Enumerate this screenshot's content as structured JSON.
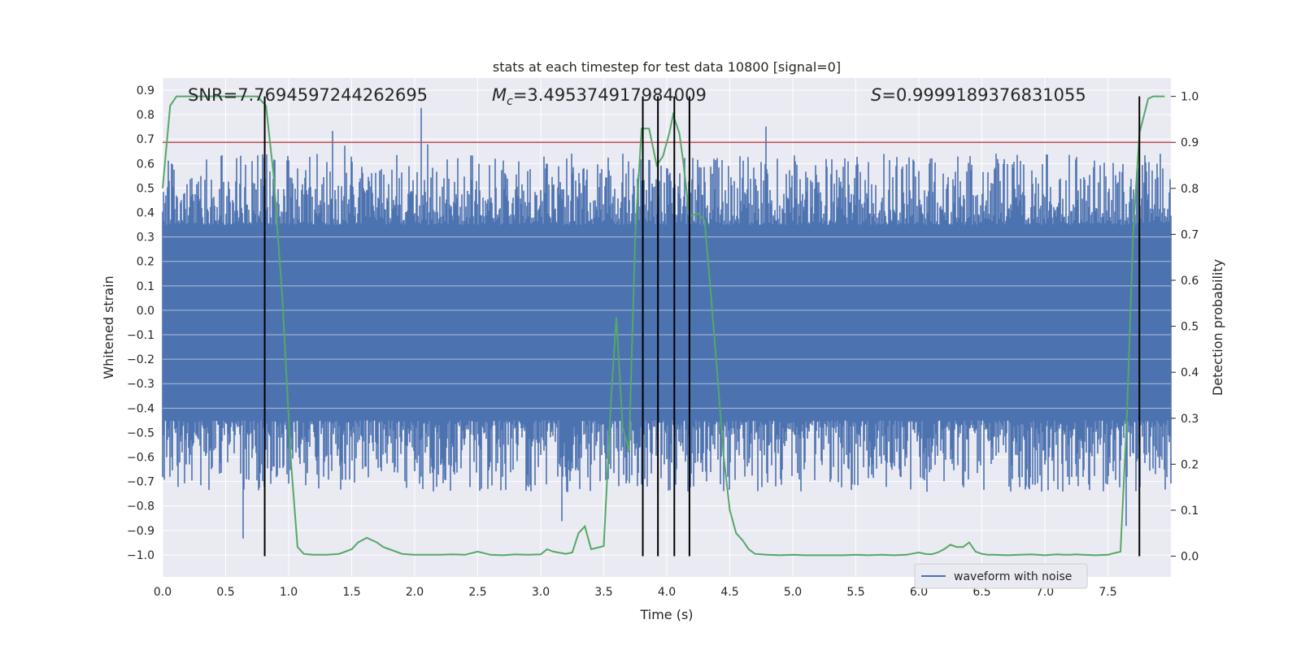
{
  "chart_data": {
    "type": "line",
    "title": "stats at each timestep for test data 10800 [signal=0]",
    "xlabel": "Time (s)",
    "ylabel": "Whitened strain",
    "y2label": "Detection probability",
    "xlim": [
      0.0,
      8.0
    ],
    "ylim": [
      -1.09,
      0.95
    ],
    "y2lim": [
      -0.045,
      1.04
    ],
    "xticks": [
      "0.0",
      "0.5",
      "1.0",
      "1.5",
      "2.0",
      "2.5",
      "3.0",
      "3.5",
      "4.0",
      "4.5",
      "5.0",
      "5.5",
      "6.0",
      "6.5",
      "7.0",
      "7.5"
    ],
    "yticks": [
      "0.9",
      "0.8",
      "0.7",
      "0.6",
      "0.5",
      "0.4",
      "0.3",
      "0.2",
      "0.1",
      "0.0",
      "-0.1",
      "-0.2",
      "-0.3",
      "-0.4",
      "-0.5",
      "-0.6",
      "-0.7",
      "-0.8",
      "-0.9",
      "-1.0"
    ],
    "y2ticks": [
      "1.0",
      "0.9",
      "0.8",
      "0.7",
      "0.6",
      "0.5",
      "0.4",
      "0.3",
      "0.2",
      "0.1",
      "0.0"
    ],
    "grid": true,
    "annotations": {
      "snr": "SNR=7.7694597244262695",
      "mc_symbol": "M",
      "mc_sub": "c",
      "mc_value": "=3.495374917984009",
      "s_symbol": "S",
      "s_value": "=0.9999189376831055"
    },
    "threshold": {
      "y2": 0.9,
      "color": "#c44e52"
    },
    "vlines": [
      0.81,
      3.81,
      3.93,
      4.06,
      4.18,
      7.75
    ],
    "series": [
      {
        "name": "waveform with noise",
        "color": "#4c72b0",
        "axis": "y",
        "noise_band": {
          "inner": [
            -0.45,
            0.35
          ],
          "spikes_up_max": 0.9,
          "spikes_down_min": -1.0
        }
      },
      {
        "name": "",
        "color": "#55a868",
        "axis": "y2",
        "x": [
          0.0,
          0.06,
          0.11,
          0.2,
          0.4,
          0.6,
          0.75,
          0.82,
          0.88,
          0.95,
          1.02,
          1.07,
          1.12,
          1.2,
          1.3,
          1.4,
          1.5,
          1.55,
          1.62,
          1.7,
          1.75,
          1.8,
          1.9,
          2.0,
          2.1,
          2.2,
          2.3,
          2.4,
          2.5,
          2.6,
          2.7,
          2.8,
          2.9,
          3.0,
          3.05,
          3.1,
          3.2,
          3.25,
          3.3,
          3.35,
          3.4,
          3.5,
          3.56,
          3.6,
          3.65,
          3.7,
          3.75,
          3.8,
          3.86,
          3.92,
          3.97,
          4.02,
          4.05,
          4.1,
          4.13,
          4.18,
          4.25,
          4.3,
          4.35,
          4.4,
          4.45,
          4.5,
          4.55,
          4.6,
          4.65,
          4.7,
          4.8,
          4.9,
          5.0,
          5.1,
          5.2,
          5.3,
          5.4,
          5.5,
          5.6,
          5.7,
          5.8,
          5.9,
          6.0,
          6.05,
          6.1,
          6.15,
          6.2,
          6.25,
          6.3,
          6.35,
          6.4,
          6.45,
          6.5,
          6.55,
          6.6,
          6.7,
          6.8,
          6.9,
          7.0,
          7.05,
          7.1,
          7.15,
          7.2,
          7.25,
          7.3,
          7.4,
          7.5,
          7.6,
          7.65,
          7.7,
          7.75,
          7.82,
          7.86,
          7.9,
          7.95
        ],
        "values": [
          0.8,
          0.98,
          1.0,
          1.0,
          1.0,
          1.0,
          1.0,
          0.98,
          0.83,
          0.56,
          0.2,
          0.02,
          0.005,
          0.003,
          0.003,
          0.005,
          0.015,
          0.03,
          0.04,
          0.03,
          0.02,
          0.015,
          0.005,
          0.003,
          0.003,
          0.003,
          0.004,
          0.003,
          0.01,
          0.003,
          0.002,
          0.004,
          0.003,
          0.004,
          0.015,
          0.01,
          0.005,
          0.008,
          0.05,
          0.065,
          0.015,
          0.022,
          0.35,
          0.52,
          0.28,
          0.23,
          0.7,
          0.93,
          0.93,
          0.85,
          0.87,
          0.92,
          0.96,
          0.92,
          0.86,
          0.74,
          0.745,
          0.73,
          0.57,
          0.4,
          0.22,
          0.1,
          0.05,
          0.035,
          0.015,
          0.005,
          0.003,
          0.002,
          0.003,
          0.002,
          0.002,
          0.002,
          0.002,
          0.003,
          0.002,
          0.003,
          0.002,
          0.003,
          0.008,
          0.005,
          0.004,
          0.008,
          0.015,
          0.025,
          0.02,
          0.02,
          0.03,
          0.01,
          0.005,
          0.003,
          0.003,
          0.002,
          0.003,
          0.004,
          0.002,
          0.003,
          0.004,
          0.003,
          0.003,
          0.004,
          0.003,
          0.002,
          0.003,
          0.01,
          0.3,
          0.7,
          0.92,
          0.995,
          1.0,
          1.0,
          1.0
        ]
      }
    ],
    "legend": {
      "placement": "lower-right",
      "entries": [
        "waveform with noise"
      ]
    }
  }
}
